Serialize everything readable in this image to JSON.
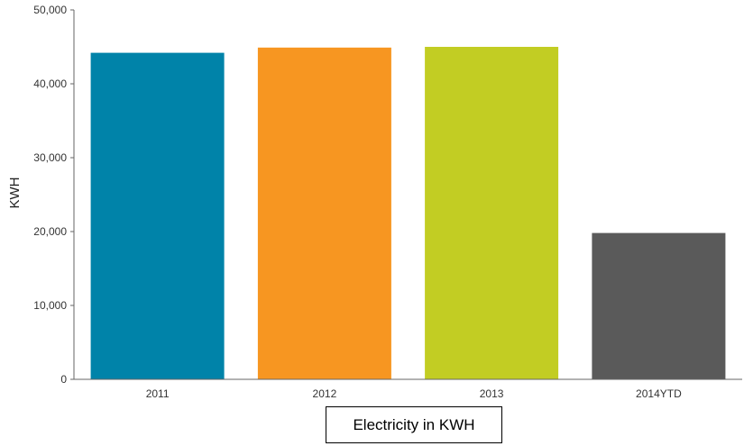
{
  "chart_data": {
    "type": "bar",
    "categories": [
      "2011",
      "2012",
      "2013",
      "2014YTD"
    ],
    "values": [
      44200,
      44900,
      45000,
      19800
    ],
    "colors": [
      "#0083a9",
      "#f79621",
      "#c2cd23",
      "#5a5a5a"
    ],
    "ylabel": "KWH",
    "ylim": [
      0,
      50000
    ],
    "yticks": [
      0,
      10000,
      20000,
      30000,
      40000,
      50000
    ],
    "ytick_labels": [
      "0",
      "10,000",
      "20,000",
      "30,000",
      "40,000",
      "50,000"
    ],
    "caption": "Electricity in KWH",
    "grid": false,
    "legend": "none"
  }
}
